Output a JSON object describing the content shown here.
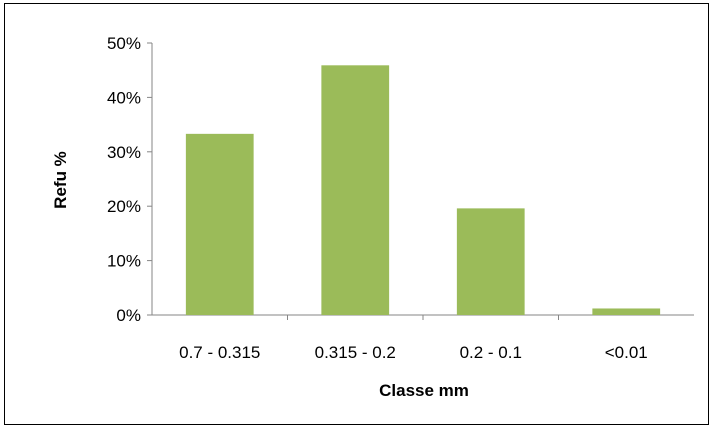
{
  "chart_data": {
    "type": "bar",
    "title": "",
    "xlabel": "Classe mm",
    "ylabel": "Refu %",
    "categories": [
      "0.7 - 0.315",
      "0.315 - 0.2",
      "0.2 - 0.1",
      "<0.01"
    ],
    "values": [
      33.3,
      45.9,
      19.6,
      1.2
    ],
    "ylim": [
      0,
      50
    ],
    "yticks": [
      0,
      10,
      20,
      30,
      40,
      50
    ],
    "ytick_labels": [
      "0%",
      "10%",
      "20%",
      "30%",
      "40%",
      "50%"
    ],
    "grid": false,
    "legend": "none",
    "bar_color": "#9BBB59"
  }
}
